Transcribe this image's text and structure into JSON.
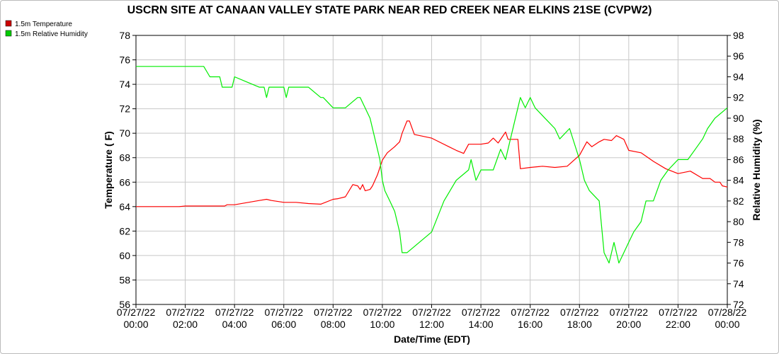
{
  "chart_data": {
    "type": "line",
    "title": "USCRN SITE AT CANAAN VALLEY STATE PARK NEAR RED CREEK NEAR ELKINS 21SE (CVPW2)",
    "xlabel": "Date/Time (EDT)",
    "ylabel_left": "Temperature ( F)",
    "ylabel_right": "Relative Humidity (%)",
    "ylim_left": [
      56,
      78
    ],
    "ylim_right": [
      72,
      98
    ],
    "xlim_hours": [
      0,
      24
    ],
    "grid": true,
    "legend_placement": "top-left",
    "x_ticks": [
      {
        "hour": 0,
        "date": "07/27/22",
        "time": "00:00"
      },
      {
        "hour": 2,
        "date": "07/27/22",
        "time": "02:00"
      },
      {
        "hour": 4,
        "date": "07/27/22",
        "time": "04:00"
      },
      {
        "hour": 6,
        "date": "07/27/22",
        "time": "06:00"
      },
      {
        "hour": 8,
        "date": "07/27/22",
        "time": "08:00"
      },
      {
        "hour": 10,
        "date": "07/27/22",
        "time": "10:00"
      },
      {
        "hour": 12,
        "date": "07/27/22",
        "time": "12:00"
      },
      {
        "hour": 14,
        "date": "07/27/22",
        "time": "14:00"
      },
      {
        "hour": 16,
        "date": "07/27/22",
        "time": "16:00"
      },
      {
        "hour": 18,
        "date": "07/27/22",
        "time": "18:00"
      },
      {
        "hour": 20,
        "date": "07/27/22",
        "time": "20:00"
      },
      {
        "hour": 22,
        "date": "07/27/22",
        "time": "22:00"
      },
      {
        "hour": 24,
        "date": "07/28/22",
        "time": "00:00"
      }
    ],
    "y_ticks_left": [
      56,
      58,
      60,
      62,
      64,
      66,
      68,
      70,
      72,
      74,
      76,
      78
    ],
    "y_ticks_right": [
      72,
      74,
      76,
      78,
      80,
      82,
      84,
      86,
      88,
      90,
      92,
      94,
      96,
      98
    ],
    "series": [
      {
        "name": "1.5m Temperature",
        "axis": "left",
        "color": "#ff0000",
        "swatch_color": "#cc0000",
        "x": [
          0,
          1,
          1.75,
          2,
          3,
          3.6,
          3.7,
          4,
          5,
          5.3,
          5.5,
          6,
          6.5,
          7,
          7.5,
          8,
          8.2,
          8.5,
          8.8,
          9,
          9.1,
          9.2,
          9.3,
          9.5,
          9.6,
          9.8,
          10,
          10.2,
          10.5,
          10.7,
          10.8,
          11,
          11.1,
          11.3,
          12,
          13,
          13.3,
          13.5,
          14,
          14.3,
          14.5,
          14.7,
          15,
          15.1,
          15.3,
          15.5,
          15.6,
          16,
          16.5,
          17,
          17.5,
          18,
          18.3,
          18.5,
          18.8,
          19,
          19.3,
          19.5,
          19.8,
          20,
          20.5,
          21,
          21.5,
          22,
          22.5,
          23,
          23.2,
          23.3,
          23.5,
          23.7,
          23.8,
          24
        ],
        "values": [
          64.0,
          64.0,
          64.0,
          64.05,
          64.05,
          64.05,
          64.15,
          64.15,
          64.5,
          64.6,
          64.5,
          64.35,
          64.35,
          64.25,
          64.2,
          64.6,
          64.65,
          64.8,
          65.8,
          65.7,
          65.4,
          65.8,
          65.3,
          65.4,
          65.7,
          66.6,
          67.8,
          68.4,
          68.9,
          69.3,
          70.0,
          71.0,
          71.0,
          69.9,
          69.6,
          68.6,
          68.35,
          69.1,
          69.1,
          69.2,
          69.6,
          69.2,
          70.1,
          69.5,
          69.5,
          69.5,
          67.1,
          67.2,
          67.3,
          67.2,
          67.3,
          68.2,
          69.3,
          68.9,
          69.3,
          69.5,
          69.4,
          69.8,
          69.5,
          68.6,
          68.4,
          67.7,
          67.1,
          66.7,
          66.9,
          66.3,
          66.3,
          66.3,
          66.0,
          66.0,
          65.7,
          65.6
        ]
      },
      {
        "name": "1.5m Relative Humidity",
        "axis": "right",
        "color": "#00ee00",
        "swatch_color": "#00cc00",
        "x": [
          0,
          1,
          2,
          2.75,
          3,
          3.4,
          3.5,
          3.9,
          4,
          4.5,
          5,
          5.2,
          5.3,
          5.4,
          6,
          6.1,
          6.2,
          7,
          7.5,
          7.6,
          8,
          8.5,
          9,
          9.1,
          9.5,
          9.7,
          9.9,
          10,
          10.1,
          10.3,
          10.5,
          10.7,
          10.8,
          11,
          11.5,
          12,
          12.5,
          13,
          13.5,
          13.6,
          13.8,
          14,
          14.2,
          14.5,
          14.8,
          15,
          15.2,
          15.5,
          15.6,
          15.8,
          16,
          16.2,
          16.6,
          17,
          17.2,
          17.6,
          18,
          18.2,
          18.4,
          18.8,
          19,
          19.2,
          19.4,
          19.6,
          19.8,
          20,
          20.2,
          20.5,
          20.7,
          21,
          21.3,
          21.6,
          22,
          22.4,
          22.7,
          23,
          23.2,
          23.5,
          24
        ],
        "values": [
          95,
          95,
          95,
          95,
          94,
          94,
          93,
          93,
          94,
          93.5,
          93,
          93,
          92,
          93,
          93,
          92,
          93,
          93,
          92,
          92,
          91,
          91,
          92,
          92,
          90,
          88,
          86,
          84,
          83,
          82,
          81,
          79,
          77,
          77,
          78,
          79,
          82,
          84,
          85,
          86,
          84,
          85,
          85,
          85,
          87,
          86,
          88,
          91,
          92,
          91,
          92,
          91,
          90,
          89,
          88,
          89,
          86,
          84,
          83,
          82,
          77,
          76,
          78,
          76,
          77,
          78,
          79,
          80,
          82,
          82,
          84,
          85,
          86,
          86,
          87,
          88,
          89,
          90,
          91
        ]
      }
    ]
  }
}
